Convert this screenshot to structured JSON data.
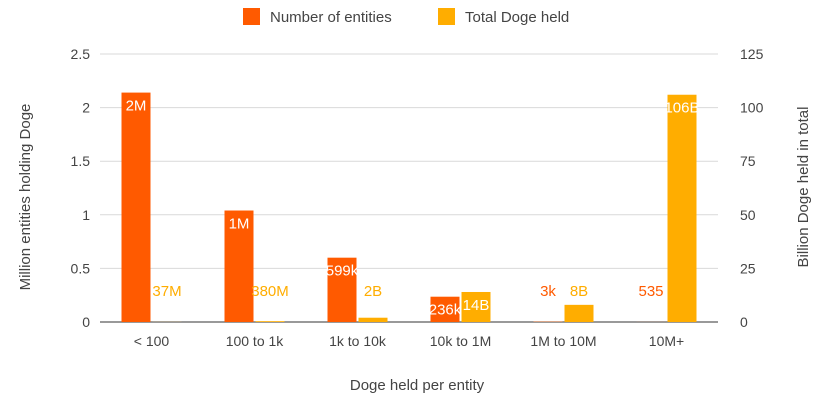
{
  "chart_data": {
    "type": "bar",
    "categories": [
      "< 100",
      "100 to 1k",
      "1k to 10k",
      "10k to 1M",
      "1M to 10M",
      "10M+"
    ],
    "series": [
      {
        "name": "Number of entities",
        "axis": "left",
        "color": "#FF5A00",
        "values": [
          2.14,
          1.04,
          0.6,
          0.236,
          0.003,
          0.000535
        ],
        "labels": [
          "2M",
          "1M",
          "599k",
          "236k",
          "3k",
          "535"
        ]
      },
      {
        "name": "Total Doge held",
        "axis": "right",
        "color": "#FFAD00",
        "values": [
          0.037,
          0.38,
          2,
          14,
          8,
          106
        ],
        "labels": [
          "37M",
          "380M",
          "2B",
          "14B",
          "8B",
          "106B"
        ]
      }
    ],
    "xlabel": "Doge held per entity",
    "ylabel_left": "Million entities holding Doge",
    "ylabel_right": "Billion Doge held in total",
    "ylim_left": [
      0,
      2.5
    ],
    "ylim_right": [
      0,
      125
    ],
    "yticks_left": [
      "0",
      "0.5",
      "1",
      "1.5",
      "2",
      "2.5"
    ],
    "yticks_right": [
      "0",
      "25",
      "50",
      "75",
      "100",
      "125"
    ],
    "grid": true,
    "legend_position": "top"
  }
}
